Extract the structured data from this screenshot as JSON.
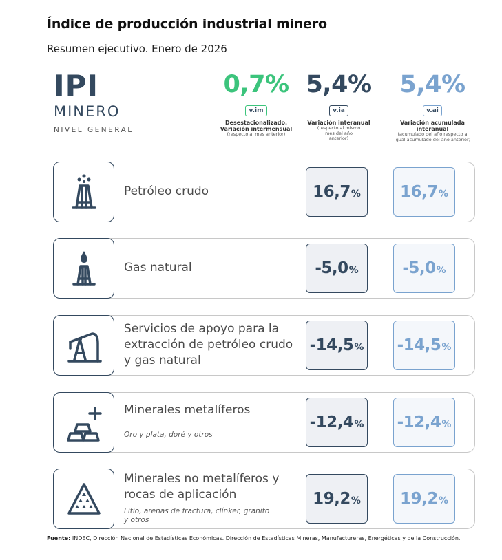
{
  "header": {
    "title": "Índice de producción industrial minero",
    "subtitle": "Resumen ejecutivo. Enero de 2026"
  },
  "brand": {
    "ipi": "IPI",
    "minero": "MINERO",
    "nivel": "NIVEL GENERAL"
  },
  "kpis": [
    {
      "value": "0,7%",
      "badge": "v.im",
      "desc": "Desestacionalizado. Variación intermensual",
      "note": "(respecto al mes anterior)",
      "color": "#3cc47c"
    },
    {
      "value": "5,4%",
      "badge": "v.ia",
      "desc": "Variación interanual",
      "note": "(respecto al mismo mes del año anterior)",
      "color": "#34495f"
    },
    {
      "value": "5,4%",
      "badge": "v.ai",
      "desc": "Variación acumulada interanual",
      "note": "(acumulado del año respecto a igual acumulado del año anterior)",
      "color": "#7aa3cf"
    }
  ],
  "chart_data": {
    "type": "table",
    "columns": [
      "v.ia",
      "v.ai"
    ],
    "unit": "%",
    "rows": [
      {
        "label": "Petróleo crudo",
        "sub": "",
        "icon": "oil-rig-icon",
        "v_ia": "16,7",
        "v_ai": "16,7"
      },
      {
        "label": "Gas natural",
        "sub": "",
        "icon": "gas-flare-icon",
        "v_ia": "-5,0",
        "v_ai": "-5,0"
      },
      {
        "label": "Servicios de apoyo para la extracción de petróleo crudo y gas natural",
        "sub": "",
        "icon": "pump-jack-icon",
        "v_ia": "-14,5",
        "v_ai": "-14,5"
      },
      {
        "label": "Minerales metalíferos",
        "sub": "Oro y plata, doré y otros",
        "icon": "gold-bars-icon",
        "v_ia": "-12,4",
        "v_ai": "-12,4"
      },
      {
        "label": "Minerales no metalíferos y rocas de aplicación",
        "sub": "Litio, arenas de fractura, clínker, granito y otros",
        "icon": "mineral-pile-icon",
        "v_ia": "19,2",
        "v_ai": "19,2"
      }
    ]
  },
  "footer": {
    "label": "Fuente:",
    "text": "INDEC, Dirección Nacional de Estadísticas Económicas. Dirección de Estadísticas Mineras, Manufactureras, Energéticas y de la Construcción."
  }
}
